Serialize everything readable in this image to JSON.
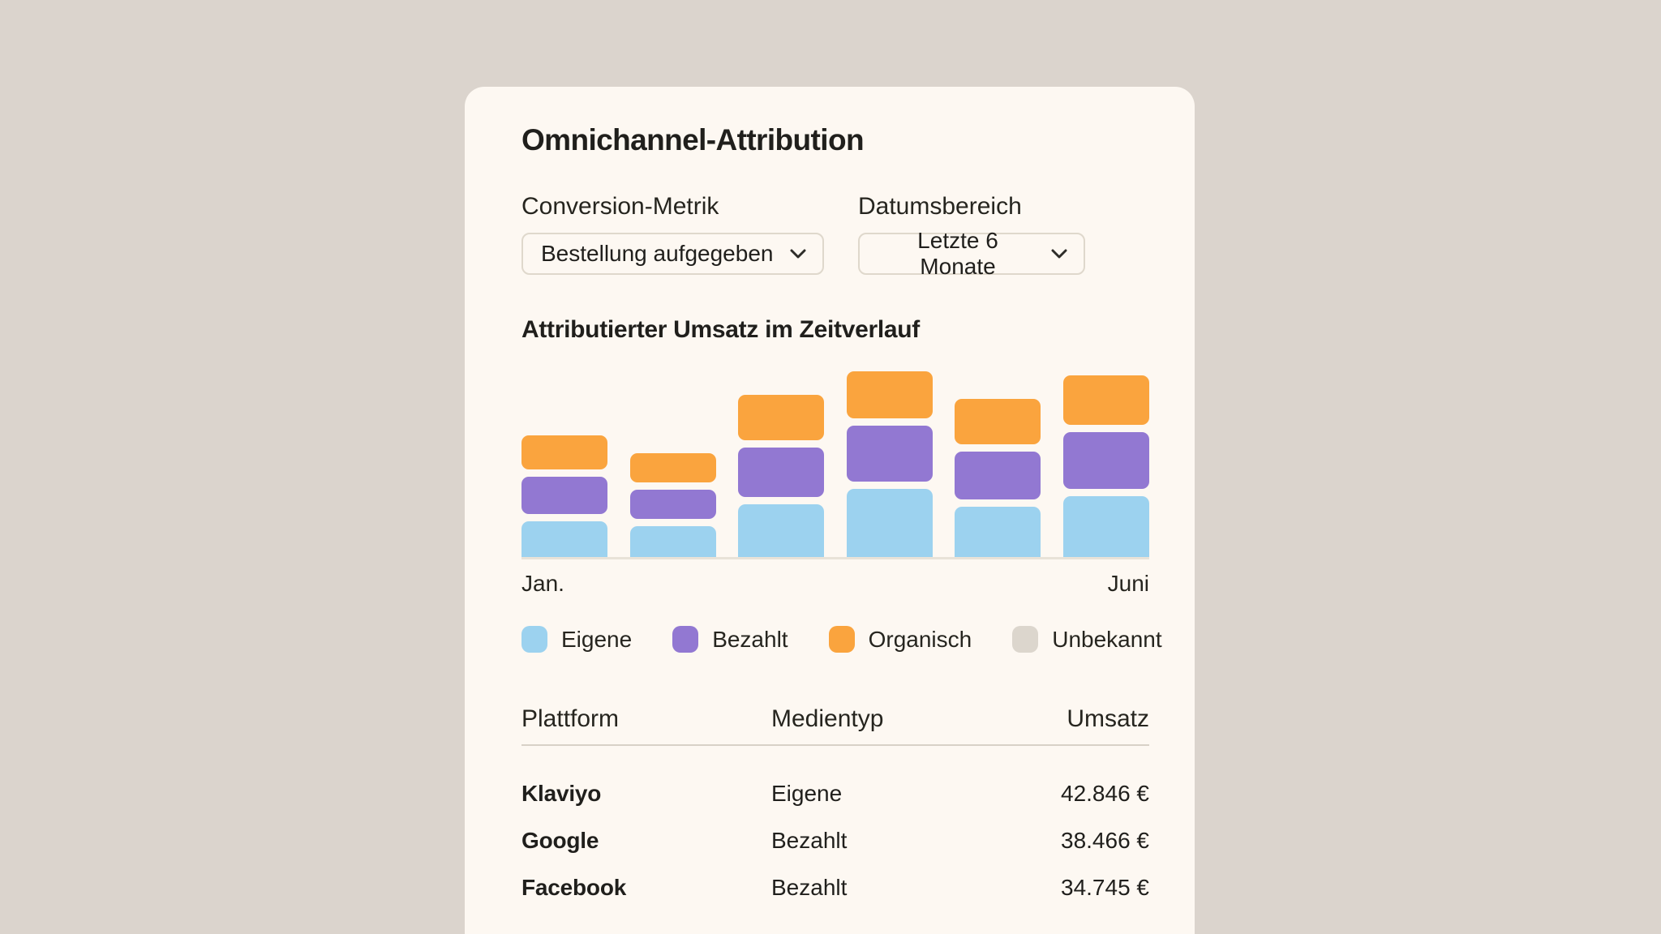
{
  "page": {
    "background_color": "#DBD4CD"
  },
  "card": {
    "background_color": "#FDF8F2",
    "title": "Omnichannel-Attribution"
  },
  "controls": {
    "conversion_metric": {
      "label": "Conversion-Metrik",
      "value": "Bestellung aufgegeben"
    },
    "date_range": {
      "label": "Datumsbereich",
      "value": "Letzte 6 Monate"
    }
  },
  "chart": {
    "heading": "Attributierter Umsatz im Zeitverlauf",
    "x_axis": {
      "left_label": "Jan.",
      "right_label": "Juni"
    }
  },
  "chart_data": {
    "type": "bar",
    "stacked": true,
    "title": "Attributierter Umsatz im Zeitverlauf",
    "categories": [
      "Jan.",
      "",
      "",
      "",
      "",
      "Juni"
    ],
    "visible_x_tick_labels": [
      "Jan.",
      "Juni"
    ],
    "series": [
      {
        "name": "Eigene",
        "color": "#9CD2EF",
        "values": [
          44,
          38,
          65,
          84,
          62,
          75
        ]
      },
      {
        "name": "Bezahlt",
        "color": "#9278D2",
        "values": [
          46,
          36,
          61,
          69,
          59,
          70
        ]
      },
      {
        "name": "Organisch",
        "color": "#FAA43E",
        "values": [
          42,
          36,
          56,
          58,
          56,
          61
        ]
      },
      {
        "name": "Unbekannt",
        "color": "#DCD6CD",
        "values": [
          0,
          0,
          0,
          0,
          0,
          0
        ]
      }
    ],
    "value_unit": "relative height (no y-axis scale shown)",
    "xlabel": "",
    "ylabel": "",
    "grid": false,
    "legend_position": "bottom"
  },
  "legend": {
    "items": [
      {
        "label": "Eigene",
        "color": "#9CD2EF"
      },
      {
        "label": "Bezahlt",
        "color": "#9278D2"
      },
      {
        "label": "Organisch",
        "color": "#FAA43E"
      },
      {
        "label": "Unbekannt",
        "color": "#DCD6CD"
      }
    ]
  },
  "table": {
    "headers": [
      "Plattform",
      "Medientyp",
      "Umsatz"
    ],
    "rows": [
      {
        "platform": "Klaviyo",
        "media_type": "Eigene",
        "revenue": "42.846 €"
      },
      {
        "platform": "Google",
        "media_type": "Bezahlt",
        "revenue": "38.466 €"
      },
      {
        "platform": "Facebook",
        "media_type": "Bezahlt",
        "revenue": "34.745 €"
      }
    ]
  }
}
